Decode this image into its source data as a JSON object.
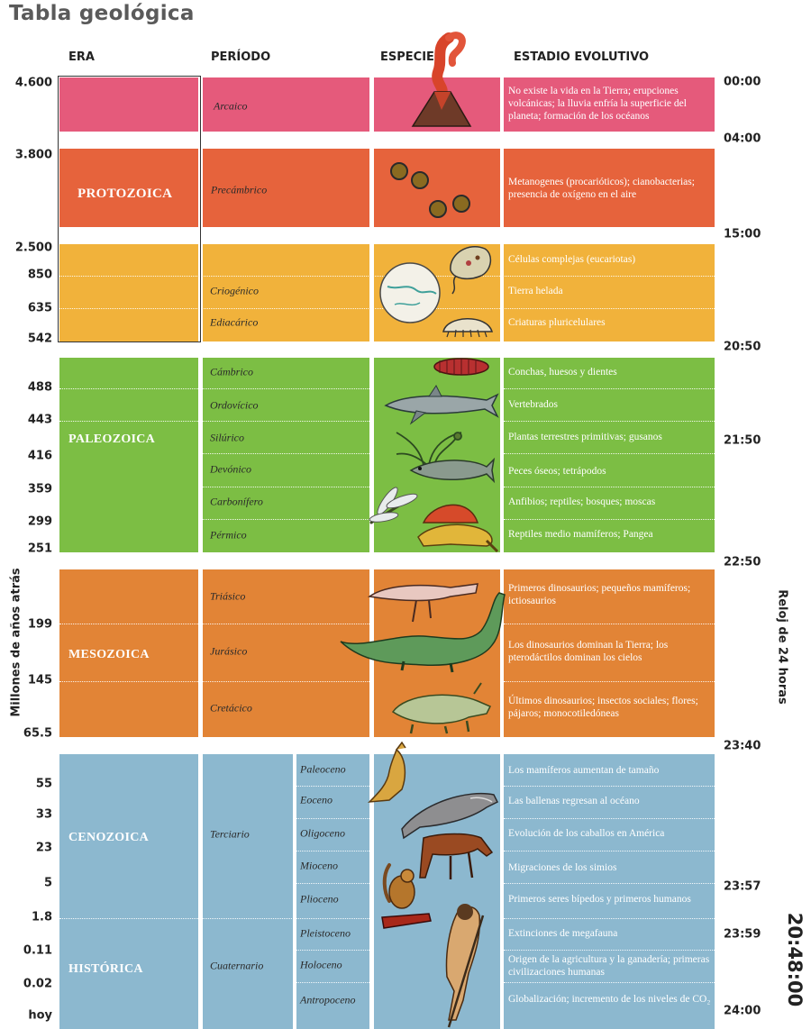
{
  "title": "Tabla geológica",
  "headers": {
    "era": "ERA",
    "periodo": "PERÍODO",
    "especies": "ESPECIES",
    "estadio": "ESTADIO EVOLUTIVO"
  },
  "axis_left": "Millones de años atrás",
  "axis_right": "Reloj de 24 horas",
  "big_clock": "20:48:00",
  "mya": [
    "4.600",
    "3.800",
    "2.500",
    "850",
    "635",
    "542",
    "488",
    "443",
    "416",
    "359",
    "299",
    "251",
    "199",
    "145",
    "65.5",
    "55",
    "33",
    "23",
    "5",
    "1.8",
    "0.11",
    "0.02",
    "hoy"
  ],
  "clock": [
    "00:00",
    "04:00",
    "15:00",
    "20:50",
    "21:50",
    "22:50",
    "23:40",
    "23:57",
    "23:59",
    "24:00"
  ],
  "eras": {
    "protozoica": "PROTOZOICA",
    "paleozoica": "PALEOZOICA",
    "mesozoica": "MESOZOICA",
    "cenozoica": "CENOZOICA",
    "historica": "HISTÓRICA"
  },
  "periods": {
    "arcaico": "Arcaico",
    "precambrico": "Precámbrico",
    "criogenico": "Criogénico",
    "ediacarico": "Ediacárico",
    "cambrico": "Cámbrico",
    "ordovicico": "Ordovícico",
    "silurico": "Silúrico",
    "devonico": "Devónico",
    "carbonifero": "Carbonífero",
    "permico": "Pérmico",
    "triasico": "Triásico",
    "jurasico": "Jurásico",
    "cretacico": "Cretácico",
    "terciario": "Terciario",
    "cuaternario": "Cuaternario",
    "paleoceno": "Paleoceno",
    "eoceno": "Eoceno",
    "oligoceno": "Oligoceno",
    "mioceno": "Mioceno",
    "plioceno": "Plioceno",
    "pleistoceno": "Pleistoceno",
    "holoceno": "Holoceno",
    "antropoceno": "Antropoceno"
  },
  "stages": {
    "arcaico": "No existe la vida en la Tierra; erupciones volcánicas; la lluvia enfría la superficie del planeta; formación de los océanos",
    "precambrico": "Metanogenes (procarióticos); cianobacterias; presencia de oxígeno en el aire",
    "celulas": "Células complejas (eucariotas)",
    "criogenico": "Tierra helada",
    "ediacarico": "Criaturas pluricelulares",
    "cambrico": "Conchas, huesos y dientes",
    "ordovicico": "Vertebrados",
    "silurico": "Plantas terrestres primitivas; gusanos",
    "devonico": "Peces óseos; tetrápodos",
    "carbonifero": "Anfibios; reptiles; bosques; moscas",
    "permico": "Reptiles medio mamíferos; Pangea",
    "triasico": "Primeros dinosaurios; pequeños mamíferos; ictiosaurios",
    "jurasico": "Los dinosaurios dominan la Tierra; los pterodáctilos dominan los cielos",
    "cretacico": "Últimos dinosaurios; insectos sociales; flores; pájaros; monocotiledóneas",
    "paleoceno": "Los mamíferos aumentan de tamaño",
    "eoceno": "Las ballenas regresan al océano",
    "oligoceno": "Evolución de los caballos en América",
    "mioceno": "Migraciones de los simios",
    "plioceno": "Primeros seres bípedos y primeros humanos",
    "pleistoceno": "Extinciones de megafauna",
    "holoceno": "Origen de la agricultura y la ganadería; primeras civilizaciones humanas",
    "antropoceno": "Globalización; incremento de los niveles de CO₂"
  },
  "colors": {
    "arcaico": "#e55a7b",
    "protozoica": "#e6633c",
    "proterozoico_tardio": "#f1b23b",
    "paleozoica": "#7cbe44",
    "mesozoica": "#e28436",
    "cenozoica": "#8cb8cf"
  }
}
